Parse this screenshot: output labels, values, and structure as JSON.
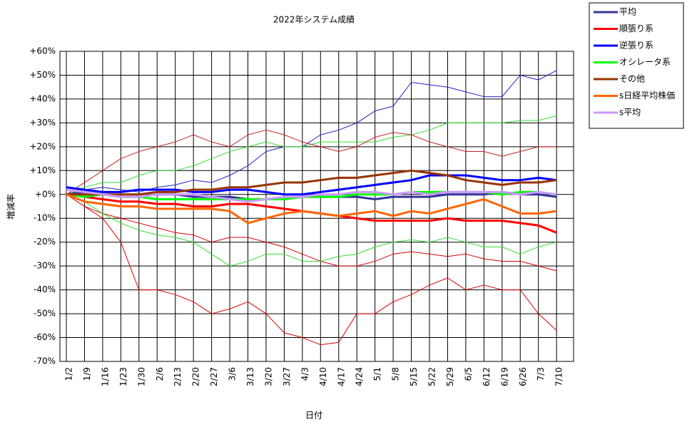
{
  "chart_data": {
    "type": "line",
    "title": "2022年システム成績",
    "y_label": "増減率",
    "x_label": "日付",
    "categories": [
      "1/2",
      "1/9",
      "1/16",
      "1/23",
      "1/30",
      "2/6",
      "2/13",
      "2/20",
      "2/27",
      "3/6",
      "3/13",
      "3/20",
      "3/27",
      "4/3",
      "4/10",
      "4/17",
      "4/24",
      "5/1",
      "5/8",
      "5/15",
      "5/22",
      "5/29",
      "6/5",
      "6/12",
      "6/19",
      "6/26",
      "7/3",
      "7/10"
    ],
    "ylim": [
      -70,
      60
    ],
    "yticks": [
      {
        "value": 60,
        "label": "+60%"
      },
      {
        "value": 50,
        "label": "+50%"
      },
      {
        "value": 40,
        "label": "+40%"
      },
      {
        "value": 30,
        "label": "+30%"
      },
      {
        "value": 20,
        "label": "+20%"
      },
      {
        "value": 10,
        "label": "+10%"
      },
      {
        "value": 0,
        "label": "+0%"
      },
      {
        "value": -10,
        "label": "-10%"
      },
      {
        "value": -20,
        "label": "-20%"
      },
      {
        "value": -30,
        "label": "-30%"
      },
      {
        "value": -40,
        "label": "-40%"
      },
      {
        "value": -50,
        "label": "-50%"
      },
      {
        "value": -60,
        "label": "-60%"
      },
      {
        "value": -70,
        "label": "-70%"
      }
    ],
    "grid": true,
    "legend": "right",
    "series": [
      {
        "color": "#2222cc",
        "values": [
          0,
          2,
          3,
          2,
          1,
          3,
          4,
          6,
          5,
          8,
          12,
          18,
          20,
          20,
          25,
          27,
          30,
          35,
          37,
          47,
          46,
          45,
          43,
          41,
          41,
          50,
          48,
          52
        ]
      },
      {
        "color": "#dd0000",
        "values": [
          0,
          -5,
          -10,
          -20,
          -40,
          -40,
          -42,
          -45,
          -50,
          -48,
          -45,
          -50,
          -58,
          -60,
          -63,
          -62,
          -50,
          -50,
          -45,
          -42,
          -38,
          -35,
          -40,
          -38,
          -40,
          -40,
          -50,
          -57
        ]
      },
      {
        "color": "#dd0000",
        "values": [
          0,
          -5,
          -8,
          -10,
          -12,
          -14,
          -16,
          -17,
          -20,
          -18,
          -18,
          -20,
          -22,
          -25,
          -28,
          -30,
          -30,
          -28,
          -25,
          -24,
          -25,
          -26,
          -25,
          -27,
          -28,
          -28,
          -30,
          -32
        ]
      },
      {
        "color": "#33dd33",
        "values": [
          0,
          3,
          5,
          5,
          8,
          10,
          10,
          12,
          15,
          18,
          20,
          22,
          20,
          20,
          22,
          22,
          22,
          22,
          24,
          25,
          27,
          30,
          30,
          30,
          30,
          31,
          31,
          33
        ]
      },
      {
        "color": "#33dd33",
        "values": [
          0,
          -3,
          -8,
          -12,
          -15,
          -17,
          -18,
          -20,
          -25,
          -30,
          -28,
          -25,
          -25,
          -28,
          -28,
          -26,
          -25,
          -22,
          -20,
          -19,
          -20,
          -18,
          -20,
          -22,
          -22,
          -25,
          -22,
          -20
        ]
      },
      {
        "color": "#cc2222",
        "values": [
          0,
          5,
          10,
          15,
          18,
          20,
          22,
          25,
          22,
          20,
          25,
          27,
          25,
          22,
          20,
          18,
          20,
          24,
          26,
          25,
          22,
          20,
          18,
          18,
          16,
          18,
          20,
          20
        ]
      },
      {
        "name": "平均",
        "color": "#333399",
        "values": [
          0,
          1,
          0,
          -1,
          -1,
          0,
          0,
          -1,
          -1,
          -1,
          -2,
          -2,
          -2,
          -1,
          -1,
          -1,
          -1,
          -2,
          -1,
          -1,
          -1,
          0,
          0,
          0,
          1,
          0,
          0,
          -1
        ]
      },
      {
        "name": "順張り系",
        "color": "#ff0000",
        "values": [
          0,
          -1,
          -2,
          -3,
          -3,
          -4,
          -4,
          -5,
          -5,
          -4,
          -4,
          -5,
          -6,
          -7,
          -8,
          -9,
          -10,
          -11,
          -11,
          -11,
          -11,
          -10,
          -11,
          -11,
          -11,
          -12,
          -13,
          -16
        ]
      },
      {
        "name": "逆張り系",
        "color": "#0000ff",
        "values": [
          3,
          2,
          1,
          1,
          2,
          2,
          2,
          1,
          1,
          2,
          2,
          1,
          0,
          0,
          1,
          2,
          3,
          4,
          5,
          6,
          8,
          8,
          8,
          7,
          6,
          6,
          7,
          6
        ]
      },
      {
        "name": "オシレータ系",
        "color": "#00ff00",
        "values": [
          0,
          -1,
          0,
          -1,
          -1,
          -2,
          -2,
          -2,
          -2,
          -2,
          -2,
          -2,
          -2,
          -1,
          -1,
          -1,
          0,
          0,
          0,
          1,
          1,
          1,
          1,
          1,
          0,
          1,
          1,
          0
        ]
      },
      {
        "name": "その他",
        "color": "#993300",
        "values": [
          0,
          0,
          0,
          0,
          0,
          1,
          1,
          2,
          2,
          3,
          3,
          4,
          5,
          5,
          6,
          7,
          7,
          8,
          9,
          10,
          9,
          8,
          6,
          5,
          4,
          5,
          5,
          6
        ]
      },
      {
        "name": "s日経平均株価",
        "color": "#ff6600",
        "values": [
          0,
          -3,
          -4,
          -5,
          -5,
          -6,
          -6,
          -6,
          -6,
          -7,
          -12,
          -10,
          -8,
          -7,
          -8,
          -9,
          -8,
          -7,
          -9,
          -7,
          -8,
          -6,
          -4,
          -2,
          -5,
          -8,
          -8,
          -7
        ]
      },
      {
        "name": "s平均",
        "color": "#cc99ff",
        "values": [
          2,
          1,
          0,
          -1,
          -1,
          0,
          0,
          0,
          -1,
          -2,
          -3,
          -2,
          -1,
          -1,
          0,
          0,
          1,
          1,
          0,
          1,
          0,
          1,
          1,
          1,
          1,
          0,
          1,
          0
        ]
      }
    ]
  }
}
